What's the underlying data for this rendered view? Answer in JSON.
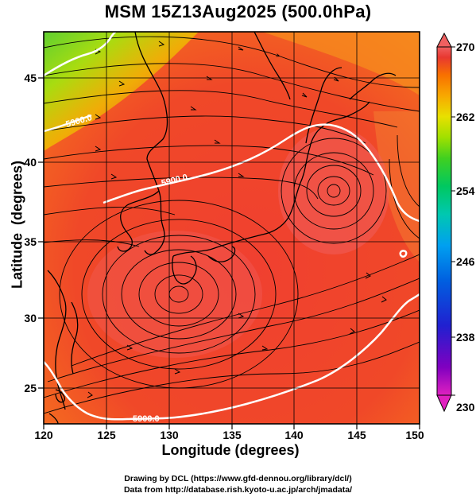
{
  "title": "MSM 15Z13Aug2025 (500.0hPa)",
  "x_axis": {
    "label": "Longitude (degrees)",
    "ticks": [
      "120",
      "125",
      "130",
      "135",
      "140",
      "145",
      "150"
    ],
    "range": [
      120,
      150
    ]
  },
  "y_axis": {
    "label": "Latitude  (degrees)",
    "ticks": [
      "25",
      "30",
      "35",
      "40",
      "45"
    ],
    "range": [
      22.5,
      47.5
    ]
  },
  "colorbar": {
    "ticks": [
      "270",
      "262",
      "254",
      "246",
      "238",
      "230"
    ],
    "range": [
      230,
      270
    ],
    "colors": [
      "#e020c0",
      "#8000c0",
      "#2020d0",
      "#0060e0",
      "#00a0f0",
      "#00c8c0",
      "#00c870",
      "#20d030",
      "#70dc10",
      "#b0e000",
      "#e8e000",
      "#f8b000",
      "#f88000",
      "#f05020",
      "#e83030",
      "#f06060"
    ]
  },
  "contours": [
    {
      "label": "5900.0"
    },
    {
      "label": "5900.0"
    },
    {
      "label": "5900.0"
    }
  ],
  "credits": {
    "line1": "Drawing by DCL (https://www.gfd-dennou.org/library/dcl/)",
    "line2": "Data from http://database.rish.kyoto-u.ac.jp/arch/jmadata/"
  }
}
